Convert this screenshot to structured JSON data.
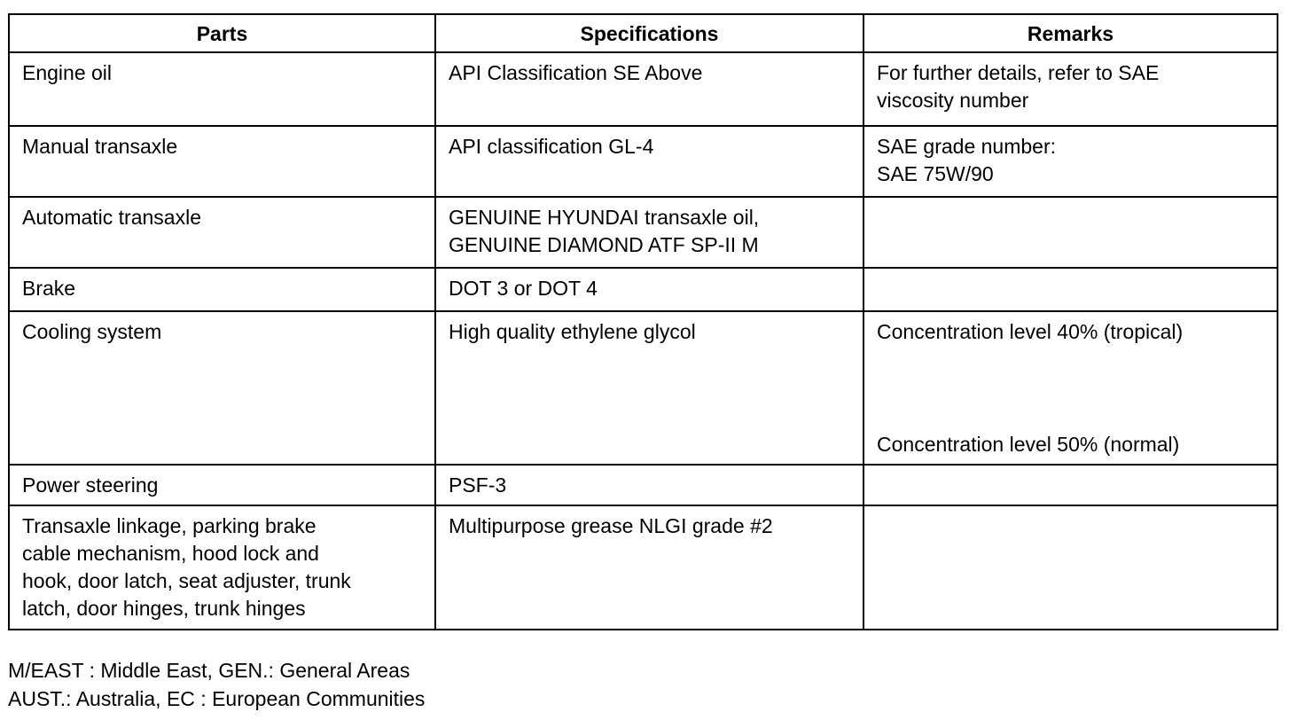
{
  "table": {
    "headers": [
      "Parts",
      "Specifications",
      "Remarks"
    ],
    "rows": [
      {
        "part": [
          "Engine oil"
        ],
        "spec": [
          "API Classification SE Above"
        ],
        "remark": [
          "For further details, refer to SAE",
          "viscosity number"
        ]
      },
      {
        "part": [
          "Manual transaxle"
        ],
        "spec": [
          "API classification GL-4"
        ],
        "remark": [
          "SAE grade number:",
          "SAE 75W/90"
        ]
      },
      {
        "part": [
          "Automatic transaxle"
        ],
        "spec": [
          "GENUINE HYUNDAI transaxle oil,",
          "GENUINE DIAMOND ATF SP-II M"
        ],
        "remark": []
      },
      {
        "part": [
          "Brake"
        ],
        "spec": [
          "DOT 3 or DOT 4"
        ],
        "remark": []
      },
      {
        "part": [
          "Cooling system"
        ],
        "spec": [
          "High quality ethylene glycol"
        ],
        "remark": [
          "Concentration level 40% (tropical)",
          "Concentration level 50% (normal)"
        ]
      },
      {
        "part": [
          "Power steering"
        ],
        "spec": [
          "PSF-3"
        ],
        "remark": []
      },
      {
        "part": [
          "Transaxle linkage, parking brake",
          "cable mechanism, hood lock and",
          "hook, door latch, seat adjuster, trunk",
          "latch, door hinges, trunk hinges"
        ],
        "spec": [
          "Multipurpose grease NLGI grade #2"
        ],
        "remark": []
      }
    ]
  },
  "notes": [
    "M/EAST : Middle East, GEN.: General Areas",
    "AUST.: Australia, EC : European Communities"
  ]
}
